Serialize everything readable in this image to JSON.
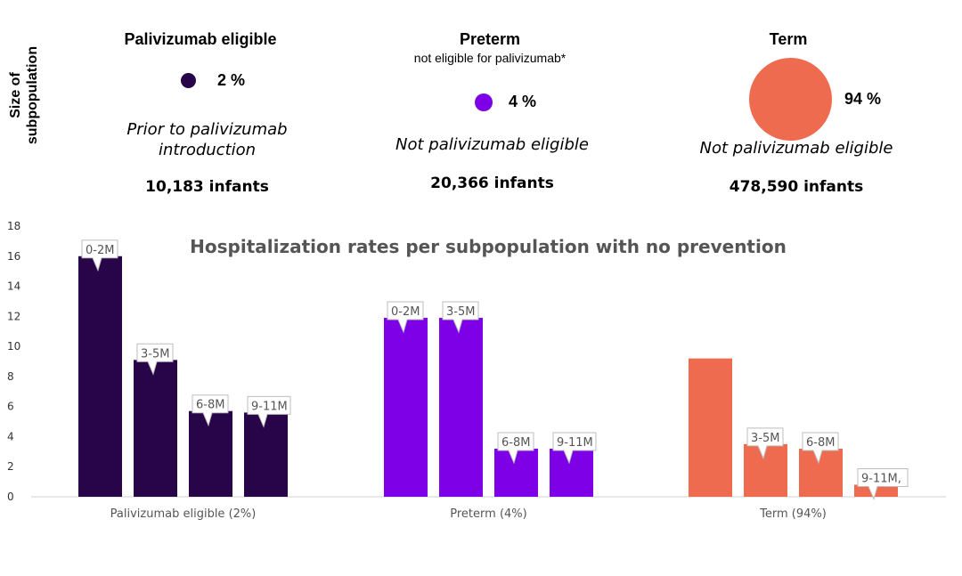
{
  "side_label": "Size of subpopulation",
  "groups": [
    {
      "title": "Palivizumab eligible",
      "subtitle": "",
      "percent": "2 %",
      "note_line1": "Prior to palivizumab",
      "note_line2": "introduction",
      "infants": "10,183  infants",
      "color": "#280448"
    },
    {
      "title": "Preterm",
      "subtitle": "not eligible for palivizumab*",
      "percent": "4 %",
      "note_line1": "Not palivizumab eligible",
      "note_line2": "",
      "infants": "20,366  infants",
      "color": "#7d00e6"
    },
    {
      "title": "Term",
      "subtitle": "",
      "percent": "94 %",
      "note_line1": "Not palivizumab eligible",
      "note_line2": "",
      "infants": "478,590  infants",
      "color": "#ef6b4f"
    }
  ],
  "chart_data": {
    "type": "bar",
    "title": "Hospitalization rates per subpopulation with no prevention",
    "categories": [
      "Palivizumab eligible (2%)",
      "Preterm (4%)",
      "Term (94%)"
    ],
    "ylim": [
      0,
      18
    ],
    "yticks": [
      "0",
      "2",
      "4",
      "6",
      "8",
      "10",
      "12",
      "14",
      "16",
      "18"
    ],
    "grid": false,
    "groups": [
      {
        "color": "#280448",
        "bars": [
          {
            "value": 16,
            "label": "0-2M"
          },
          {
            "value": 9.1,
            "label": "3-5M"
          },
          {
            "value": 5.7,
            "label": "6-8M"
          },
          {
            "value": 5.6,
            "label": "9-11M"
          }
        ]
      },
      {
        "color": "#7d00e6",
        "bars": [
          {
            "value": 11.9,
            "label": "0-2M"
          },
          {
            "value": 11.9,
            "label": "3-5M"
          },
          {
            "value": 3.2,
            "label": "6-8M"
          },
          {
            "value": 3.2,
            "label": "9-11M"
          }
        ]
      },
      {
        "color": "#ef6b4f",
        "bars": [
          {
            "value": 9.2,
            "label": ""
          },
          {
            "value": 3.5,
            "label": "3-5M"
          },
          {
            "value": 3.2,
            "label": "6-8M"
          },
          {
            "value": 0.8,
            "label": "9-11M,"
          }
        ]
      }
    ]
  }
}
